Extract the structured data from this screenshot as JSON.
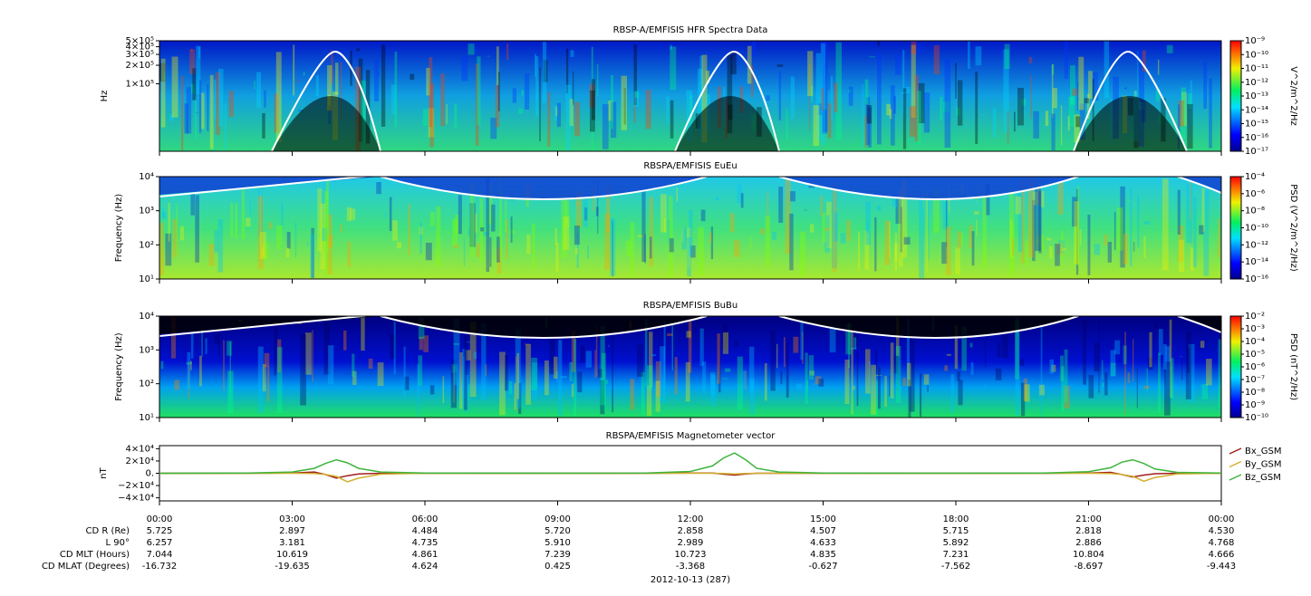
{
  "chart_data": [
    {
      "type": "heatmap",
      "title": "RBSP-A/EMFISIS  HFR Spectra Data",
      "ylabel": "Hz",
      "log_y": true,
      "ylim": [
        8000,
        500000
      ],
      "yticks": [
        {
          "value": 500000,
          "label": "5×10⁵"
        },
        {
          "value": 400000,
          "label": "4×10⁵"
        },
        {
          "value": 300000,
          "label": "3×10⁵"
        },
        {
          "value": 200000,
          "label": "2×10⁵"
        },
        {
          "value": 100000,
          "label": "1×10⁵"
        }
      ],
      "colorbar_label": "V^2/m^2/Hz",
      "clim": [
        1e-17,
        1e-09
      ],
      "cticks": [
        {
          "value": 1e-09,
          "label": "10⁻⁹"
        },
        {
          "value": 1e-10,
          "label": "10⁻¹⁰"
        },
        {
          "value": 1e-11,
          "label": "10⁻¹¹"
        },
        {
          "value": 1e-12,
          "label": "10⁻¹²"
        },
        {
          "value": 1e-13,
          "label": "10⁻¹³"
        },
        {
          "value": 1e-14,
          "label": "10⁻¹⁴"
        },
        {
          "value": 1e-15,
          "label": "10⁻¹⁵"
        },
        {
          "value": 1e-16,
          "label": "10⁻¹⁶"
        },
        {
          "value": 1e-17,
          "label": "10⁻¹⁷"
        }
      ]
    },
    {
      "type": "heatmap",
      "title": "RBSPA/EMFISIS  EuEu",
      "ylabel": "Frequency (Hz)",
      "log_y": true,
      "ylim": [
        10,
        10000
      ],
      "yticks": [
        {
          "value": 10000,
          "label": "10⁴"
        },
        {
          "value": 1000,
          "label": "10³"
        },
        {
          "value": 100,
          "label": "10²"
        },
        {
          "value": 10,
          "label": "10¹"
        }
      ],
      "colorbar_label": "PSD (V^2/m^2/Hz)",
      "clim": [
        1e-16,
        0.0001
      ],
      "cticks": [
        {
          "value": 0.0001,
          "label": "10⁻⁴"
        },
        {
          "value": 1e-06,
          "label": "10⁻⁶"
        },
        {
          "value": 1e-08,
          "label": "10⁻⁸"
        },
        {
          "value": 1e-10,
          "label": "10⁻¹⁰"
        },
        {
          "value": 1e-12,
          "label": "10⁻¹²"
        },
        {
          "value": 1e-14,
          "label": "10⁻¹⁴"
        },
        {
          "value": 1e-16,
          "label": "10⁻¹⁶"
        }
      ]
    },
    {
      "type": "heatmap",
      "title": "RBSPA/EMFISIS  BuBu",
      "ylabel": "Frequency (Hz)",
      "log_y": true,
      "ylim": [
        10,
        10000
      ],
      "yticks": [
        {
          "value": 10000,
          "label": "10⁴"
        },
        {
          "value": 1000,
          "label": "10³"
        },
        {
          "value": 100,
          "label": "10²"
        },
        {
          "value": 10,
          "label": "10¹"
        }
      ],
      "colorbar_label": "PSD (nT^2/Hz)",
      "clim": [
        1e-10,
        0.01
      ],
      "cticks": [
        {
          "value": 0.01,
          "label": "10⁻²"
        },
        {
          "value": 0.001,
          "label": "10⁻³"
        },
        {
          "value": 0.0001,
          "label": "10⁻⁴"
        },
        {
          "value": 1e-05,
          "label": "10⁻⁵"
        },
        {
          "value": 1e-06,
          "label": "10⁻⁶"
        },
        {
          "value": 1e-07,
          "label": "10⁻⁷"
        },
        {
          "value": 1e-08,
          "label": "10⁻⁸"
        },
        {
          "value": 1e-09,
          "label": "10⁻⁹"
        },
        {
          "value": 1e-10,
          "label": "10⁻¹⁰"
        }
      ]
    },
    {
      "type": "line",
      "title": "RBSPA/EMFISIS  Magnetometer vector",
      "ylabel": "nT",
      "ylim": [
        -45000,
        45000
      ],
      "yticks": [
        {
          "value": 40000,
          "label": "4×10⁴"
        },
        {
          "value": 20000,
          "label": "2×10⁴"
        },
        {
          "value": 0,
          "label": "0."
        },
        {
          "value": -20000,
          "label": "−2×10⁴"
        },
        {
          "value": -40000,
          "label": "−4×10⁴"
        }
      ],
      "xlim": [
        0,
        24
      ],
      "xticks": [
        {
          "value": 0,
          "label": "00:00"
        },
        {
          "value": 3,
          "label": "03:00"
        },
        {
          "value": 6,
          "label": "06:00"
        },
        {
          "value": 9,
          "label": "09:00"
        },
        {
          "value": 12,
          "label": "12:00"
        },
        {
          "value": 15,
          "label": "15:00"
        },
        {
          "value": 18,
          "label": "18:00"
        },
        {
          "value": 21,
          "label": "21:00"
        },
        {
          "value": 24,
          "label": "00:00"
        }
      ],
      "x": [
        0,
        2,
        3,
        3.5,
        3.75,
        4,
        4.25,
        4.5,
        5,
        6,
        9,
        11,
        12,
        12.5,
        12.75,
        13,
        13.25,
        13.5,
        14,
        15,
        18,
        20,
        21,
        21.5,
        21.75,
        22,
        22.25,
        22.5,
        23,
        24
      ],
      "series": [
        {
          "name": "Bx_GSM",
          "color": "#a0201c",
          "values": [
            0,
            0,
            300,
            2000,
            -2000,
            -8000,
            -4000,
            -1000,
            0,
            0,
            0,
            0,
            300,
            500,
            -1500,
            -3000,
            -1000,
            0,
            0,
            0,
            0,
            0,
            300,
            1500,
            -2000,
            -6000,
            -3000,
            -800,
            0,
            0
          ]
        },
        {
          "name": "By_GSM",
          "color": "#d2b030",
          "values": [
            0,
            0,
            0,
            -500,
            -2000,
            -5000,
            -14000,
            -8000,
            -1500,
            0,
            0,
            0,
            0,
            0,
            -500,
            -1000,
            -500,
            0,
            0,
            0,
            0,
            0,
            0,
            -500,
            -2000,
            -5000,
            -13000,
            -7000,
            -1000,
            0
          ]
        },
        {
          "name": "Bz_GSM",
          "color": "#3cb43c",
          "values": [
            0,
            500,
            2000,
            8000,
            16000,
            22000,
            17000,
            8000,
            2000,
            500,
            200,
            500,
            3000,
            12000,
            25000,
            33000,
            22000,
            8000,
            2000,
            500,
            200,
            500,
            2500,
            9000,
            18000,
            22000,
            16000,
            7000,
            1500,
            300
          ]
        }
      ]
    }
  ],
  "ephemeris": {
    "rows": [
      {
        "label": "CD R (Re)",
        "values": [
          "5.725",
          "2.897",
          "4.484",
          "5.720",
          "2.858",
          "4.507",
          "5.715",
          "2.818",
          "4.530"
        ]
      },
      {
        "label": "L 90°",
        "values": [
          "6.257",
          "3.181",
          "4.735",
          "5.910",
          "2.989",
          "4.633",
          "5.892",
          "2.886",
          "4.768"
        ]
      },
      {
        "label": "CD MLT (Hours)",
        "values": [
          "7.044",
          "10.619",
          "4.861",
          "7.239",
          "10.723",
          "4.835",
          "7.231",
          "10.804",
          "4.666"
        ]
      },
      {
        "label": "CD MLAT (Degrees)",
        "values": [
          "-16.732",
          "-19.635",
          "4.624",
          "0.425",
          "-3.368",
          "-0.627",
          "-7.562",
          "-8.697",
          "-9.443"
        ]
      }
    ],
    "date_label": "2012-10-13 (287)"
  }
}
